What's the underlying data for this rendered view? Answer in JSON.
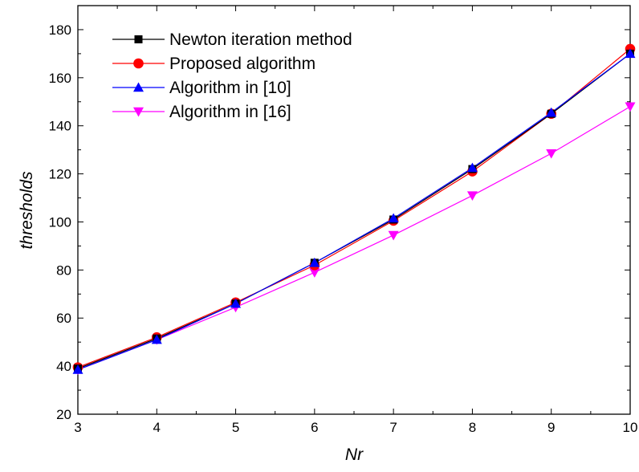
{
  "chart_data": {
    "type": "line",
    "title": "",
    "xlabel": "Nr",
    "ylabel": "thresholds",
    "xlim": [
      3,
      10
    ],
    "ylim": [
      20,
      190
    ],
    "x_ticks": [
      3,
      4,
      5,
      6,
      7,
      8,
      9,
      10
    ],
    "y_ticks": [
      20,
      40,
      60,
      80,
      100,
      120,
      140,
      160,
      180
    ],
    "grid": false,
    "legend_position": "top-left",
    "x": [
      3,
      4,
      5,
      6,
      7,
      8,
      9,
      10
    ],
    "series": [
      {
        "name": "Newton iteration method",
        "color": "#000000",
        "marker": "square",
        "values": [
          39,
          51.5,
          66,
          83,
          101,
          122,
          145,
          170
        ]
      },
      {
        "name": "Proposed algorithm",
        "color": "#ff0000",
        "marker": "circle",
        "values": [
          39.5,
          52,
          66.5,
          82,
          100.5,
          121,
          145,
          172
        ]
      },
      {
        "name": "Algorithm in [10]",
        "color": "#0000ff",
        "marker": "triangle-up",
        "values": [
          38.5,
          51,
          66,
          83,
          101.5,
          122.5,
          145.5,
          170
        ]
      },
      {
        "name": "Algorithm in [16]",
        "color": "#ff00ff",
        "marker": "triangle-down",
        "values": [
          38.5,
          51,
          64.5,
          79,
          94.5,
          111,
          128.5,
          148
        ]
      }
    ]
  }
}
